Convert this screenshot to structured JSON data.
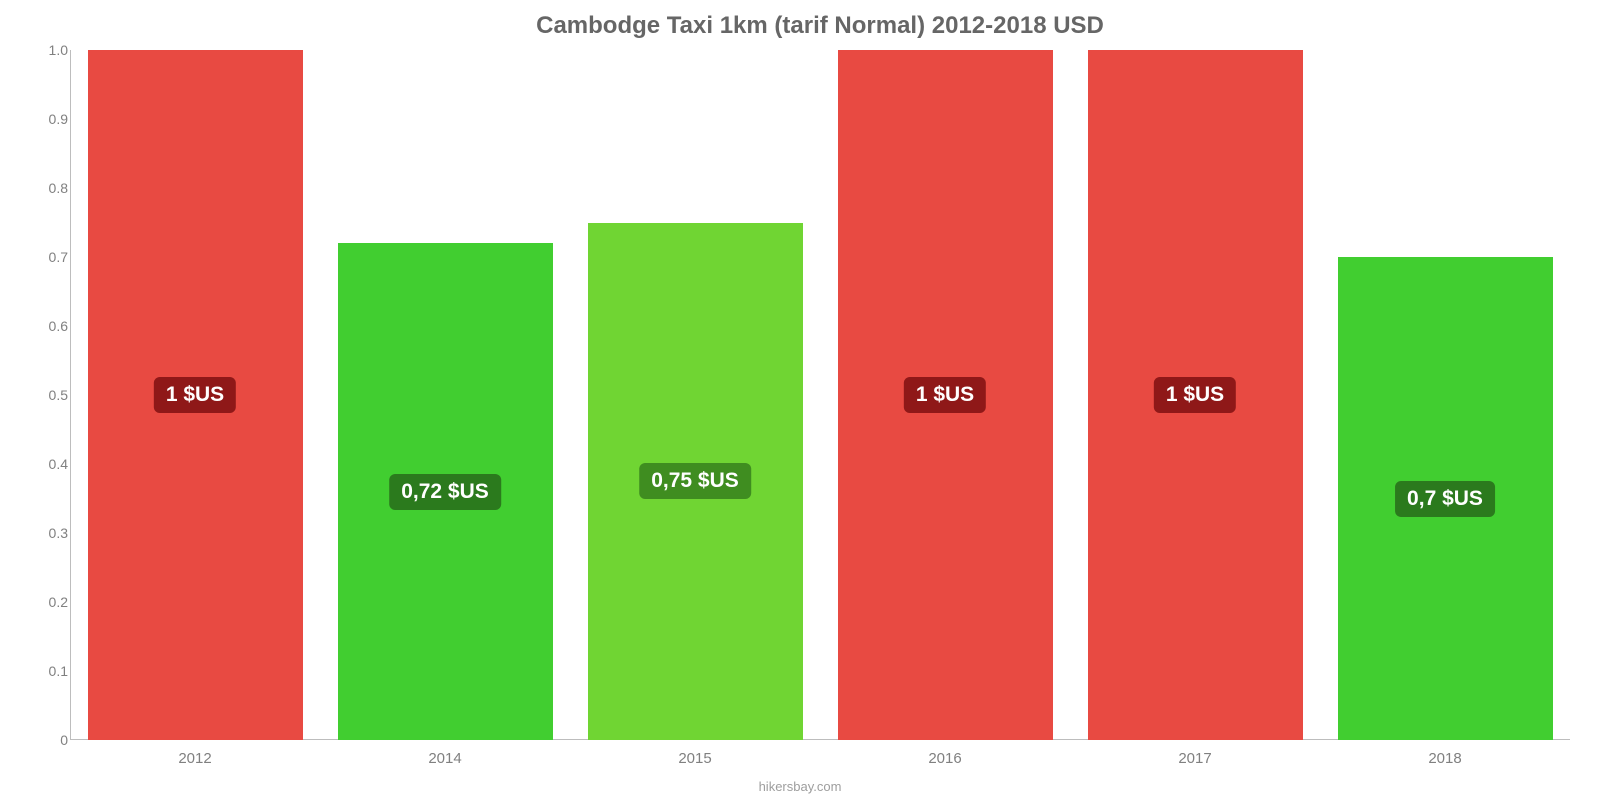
{
  "chart": {
    "type": "bar",
    "title": "Cambodge Taxi 1km (tarif Normal) 2012-2018 USD",
    "title_fontsize": 24,
    "title_color": "#666666",
    "footer": "hikersbay.com",
    "footer_fontsize": 13,
    "footer_color": "#9e9e9e",
    "background_color": "#ffffff",
    "axis_line_color": "#bdbdbd",
    "tick_color": "#808080",
    "tick_fontsize": 14,
    "xlabel_color": "#808080",
    "xlabel_fontsize": 15,
    "ylim": [
      0,
      1.0
    ],
    "yticks": [
      0,
      0.1,
      0.2,
      0.3,
      0.4,
      0.5,
      0.6,
      0.7,
      0.8,
      0.9,
      1.0
    ],
    "ytick_labels": [
      "0",
      "0.1",
      "0.2",
      "0.3",
      "0.4",
      "0.5",
      "0.6",
      "0.7",
      "0.8",
      "0.9",
      "1.0"
    ],
    "bar_width_ratio": 0.86,
    "value_label_fontsize": 21,
    "value_label_color": "#ffffff",
    "label_bg_red": "#8f1818",
    "label_bg_green_dark": "#2b7a1d",
    "label_bg_green_light": "#3f8d20",
    "bars": [
      {
        "category": "2012",
        "value": 1.0,
        "label": "1 $US",
        "bar_color": "#e84a42",
        "label_bg": "#8f1818"
      },
      {
        "category": "2014",
        "value": 0.72,
        "label": "0,72 $US",
        "bar_color": "#41ce30",
        "label_bg": "#2b7a1d"
      },
      {
        "category": "2015",
        "value": 0.75,
        "label": "0,75 $US",
        "bar_color": "#70d533",
        "label_bg": "#3f8d20"
      },
      {
        "category": "2016",
        "value": 1.0,
        "label": "1 $US",
        "bar_color": "#e84a42",
        "label_bg": "#8f1818"
      },
      {
        "category": "2017",
        "value": 1.0,
        "label": "1 $US",
        "bar_color": "#e84a42",
        "label_bg": "#8f1818"
      },
      {
        "category": "2018",
        "value": 0.7,
        "label": "0,7 $US",
        "bar_color": "#41ce30",
        "label_bg": "#2b7a1d"
      }
    ]
  }
}
